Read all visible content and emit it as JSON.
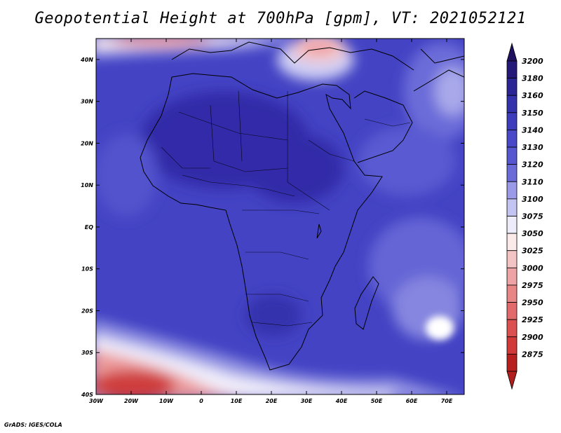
{
  "title": "Geopotential Height at 700hPa [gpm], VT: 2021052121",
  "footer": "GrADS: IGES/COLA",
  "map": {
    "lon_range": [
      -30,
      75
    ],
    "lat_range": [
      -40,
      45
    ],
    "lon_ticks": [
      {
        "value": -30,
        "label": "30W"
      },
      {
        "value": -20,
        "label": "20W"
      },
      {
        "value": -10,
        "label": "10W"
      },
      {
        "value": 0,
        "label": "0"
      },
      {
        "value": 10,
        "label": "10E"
      },
      {
        "value": 20,
        "label": "20E"
      },
      {
        "value": 30,
        "label": "30E"
      },
      {
        "value": 40,
        "label": "40E"
      },
      {
        "value": 50,
        "label": "50E"
      },
      {
        "value": 60,
        "label": "60E"
      },
      {
        "value": 70,
        "label": "70E"
      }
    ],
    "lat_ticks": [
      {
        "value": 40,
        "label": "40N"
      },
      {
        "value": 30,
        "label": "30N"
      },
      {
        "value": 20,
        "label": "20N"
      },
      {
        "value": 10,
        "label": "10N"
      },
      {
        "value": 0,
        "label": "EQ"
      },
      {
        "value": -10,
        "label": "10S"
      },
      {
        "value": -20,
        "label": "20S"
      },
      {
        "value": -30,
        "label": "30S"
      },
      {
        "value": -40,
        "label": "40S"
      }
    ]
  },
  "colorbar": {
    "levels": [
      {
        "label": "3200",
        "color": "#241878"
      },
      {
        "label": "3180",
        "color": "#2b2595"
      },
      {
        "label": "3160",
        "color": "#3331ab"
      },
      {
        "label": "3150",
        "color": "#3c3cbd"
      },
      {
        "label": "3140",
        "color": "#4848c8"
      },
      {
        "label": "3130",
        "color": "#5656d0"
      },
      {
        "label": "3120",
        "color": "#6a6ad8"
      },
      {
        "label": "3110",
        "color": "#9a9ae6"
      },
      {
        "label": "3100",
        "color": "#c4c4f2"
      },
      {
        "label": "3075",
        "color": "#ececfb"
      },
      {
        "label": "3050",
        "color": "#fbeaea"
      },
      {
        "label": "3025",
        "color": "#f4c4c4"
      },
      {
        "label": "3000",
        "color": "#eea4a4"
      },
      {
        "label": "2975",
        "color": "#e88686"
      },
      {
        "label": "2950",
        "color": "#e26a6a"
      },
      {
        "label": "2925",
        "color": "#dc5050"
      },
      {
        "label": "2900",
        "color": "#d23a3a"
      },
      {
        "label": "2875",
        "color": "#b82020"
      }
    ],
    "top_arrow_color": "#201060",
    "bottom_arrow_color": "#b01e1e"
  }
}
